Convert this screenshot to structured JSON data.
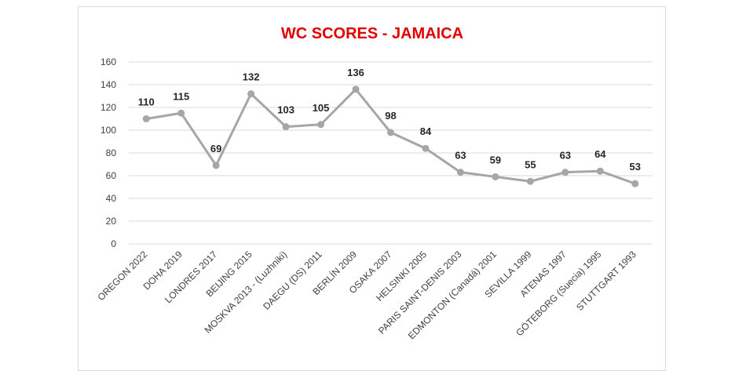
{
  "chart_data": {
    "type": "line",
    "title": "WC SCORES - JAMAICA",
    "categories": [
      "OREGON 2022",
      "DOHA 2019",
      "LONDRES 2017",
      "BEIJING 2015",
      "MOSKVA 2013 - (Luzhniki)",
      "DAEGU (DS) 2011",
      "BERLÍN 2009",
      "OSAKA 2007",
      "HELSINKI 2005",
      "PARIS SAINT-DENIS 2003",
      "EDMONTON (Canadá) 2001",
      "SEVILLA 1999",
      "ATENAS 1997",
      "GÖTEBORG (Suecia) 1995",
      "STUTTGART 1993"
    ],
    "series": [
      {
        "values": [
          110,
          115,
          69,
          132,
          103,
          105,
          136,
          98,
          84,
          63,
          59,
          55,
          63,
          64,
          53
        ]
      }
    ],
    "ylim": [
      0,
      160
    ],
    "yticks": [
      "0",
      "20",
      "40",
      "60",
      "80",
      "100",
      "120",
      "140",
      "160"
    ],
    "grid": true,
    "legend": "none",
    "colors": {
      "title": "#e00000",
      "line": "#a6a6a6",
      "grid": "#d9d9d9"
    }
  }
}
